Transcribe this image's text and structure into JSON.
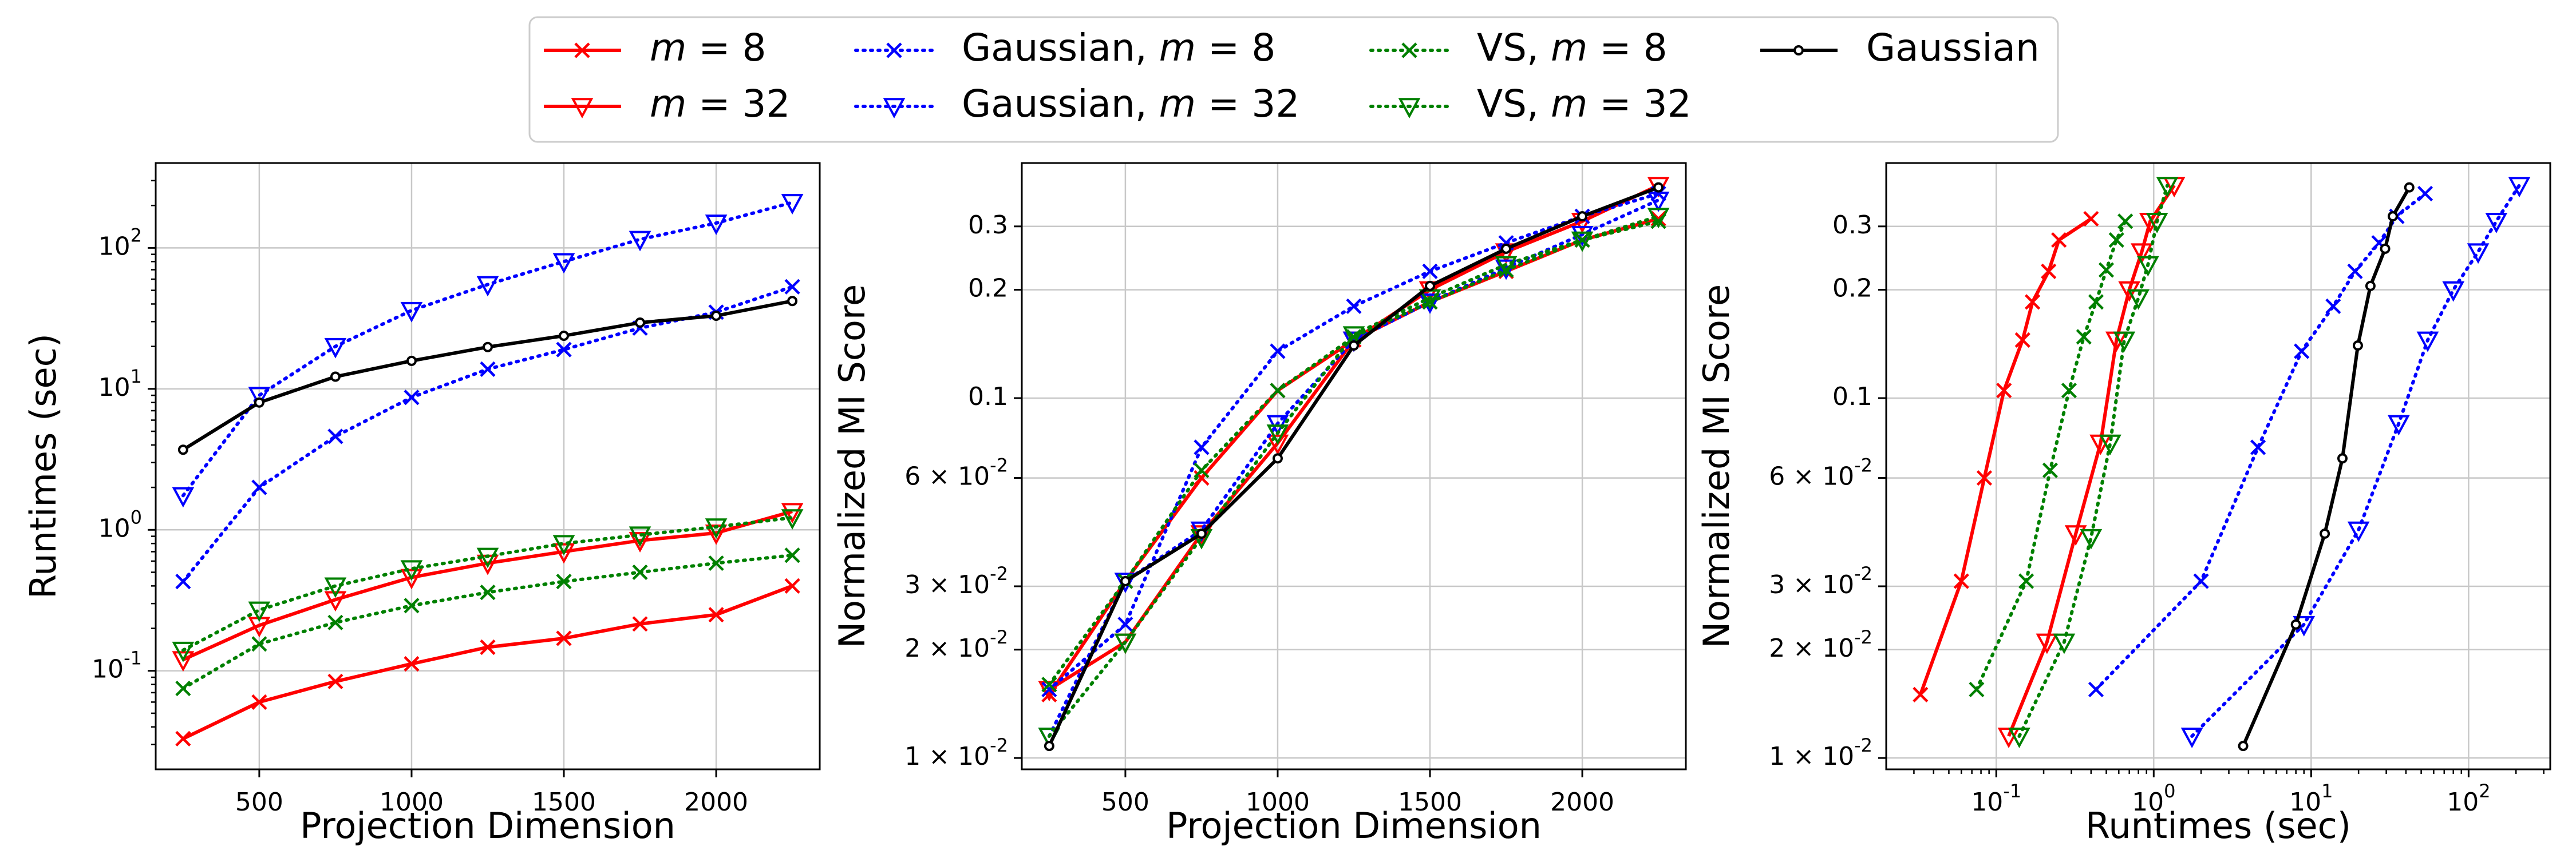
{
  "legend": {
    "entries": [
      {
        "label": "m = 8",
        "series_ref": "m8"
      },
      {
        "label": "m = 32",
        "series_ref": "m32"
      },
      {
        "label": "Gaussian, m = 8",
        "series_ref": "g8"
      },
      {
        "label": "Gaussian, m = 32",
        "series_ref": "g32"
      },
      {
        "label": "VS, m = 8",
        "series_ref": "vs8"
      },
      {
        "label": "VS, m = 32",
        "series_ref": "vs32"
      },
      {
        "label": "Gaussian",
        "series_ref": "gauss"
      }
    ]
  },
  "series_styles": {
    "m8": {
      "color": "#ff0000",
      "dash": "solid",
      "marker": "x"
    },
    "m32": {
      "color": "#ff0000",
      "dash": "solid",
      "marker": "triangle-down"
    },
    "g8": {
      "color": "#0000ff",
      "dash": "dotted",
      "marker": "x"
    },
    "g32": {
      "color": "#0000ff",
      "dash": "dotted",
      "marker": "triangle-down"
    },
    "vs8": {
      "color": "#008000",
      "dash": "dotted",
      "marker": "x"
    },
    "vs32": {
      "color": "#008000",
      "dash": "dotted",
      "marker": "triangle-down"
    },
    "gauss": {
      "color": "#000000",
      "dash": "solid",
      "marker": "circle"
    }
  },
  "chart_data": [
    {
      "type": "line",
      "xlabel": "Projection Dimension",
      "ylabel": "Runtimes (sec)",
      "xscale": "linear",
      "yscale": "log",
      "xlim": [
        160,
        2340
      ],
      "ylim": [
        0.02,
        400
      ],
      "xticks": [
        500,
        1000,
        1500,
        2000
      ],
      "xtick_labels": [
        "500",
        "1000",
        "1500",
        "2000"
      ],
      "yticks": [
        0.1,
        1,
        10,
        100
      ],
      "ytick_labels": [
        "10^-1",
        "10^0",
        "10^1",
        "10^2"
      ],
      "grid": true,
      "x": [
        250,
        500,
        750,
        1000,
        1250,
        1500,
        1750,
        2000,
        2250
      ],
      "series": [
        {
          "key": "m8",
          "values": [
            0.033,
            0.06,
            0.084,
            0.112,
            0.147,
            0.17,
            0.215,
            0.25,
            0.4
          ]
        },
        {
          "key": "m32",
          "values": [
            0.12,
            0.21,
            0.32,
            0.46,
            0.58,
            0.7,
            0.84,
            0.95,
            1.35
          ]
        },
        {
          "key": "g8",
          "values": [
            0.43,
            2.0,
            4.6,
            8.7,
            13.8,
            19.0,
            27.0,
            35.0,
            53.0
          ]
        },
        {
          "key": "g32",
          "values": [
            1.75,
            9.0,
            20.0,
            36.0,
            55.0,
            80.0,
            115.0,
            150.0,
            210.0
          ]
        },
        {
          "key": "vs8",
          "values": [
            0.075,
            0.155,
            0.22,
            0.29,
            0.36,
            0.43,
            0.5,
            0.58,
            0.66
          ]
        },
        {
          "key": "vs32",
          "values": [
            0.14,
            0.27,
            0.4,
            0.53,
            0.65,
            0.8,
            0.92,
            1.05,
            1.22
          ]
        },
        {
          "key": "gauss",
          "values": [
            3.7,
            8.0,
            12.2,
            15.8,
            19.8,
            23.8,
            29.5,
            33.0,
            42.0
          ]
        }
      ]
    },
    {
      "type": "line",
      "xlabel": "Projection Dimension",
      "ylabel": "Normalized MI Score",
      "xscale": "linear",
      "yscale": "log",
      "xlim": [
        160,
        2340
      ],
      "ylim": [
        0.0093,
        0.45
      ],
      "xticks": [
        500,
        1000,
        1500,
        2000
      ],
      "xtick_labels": [
        "500",
        "1000",
        "1500",
        "2000"
      ],
      "yticks": [
        0.01,
        0.02,
        0.03,
        0.06,
        0.1,
        0.2,
        0.3
      ],
      "ytick_labels": [
        "1 × 10^-2",
        "2 × 10^-2",
        "3 × 10^-2",
        "6 × 10^-2",
        "0.1",
        "0.2",
        "0.3"
      ],
      "grid": true,
      "x": [
        250,
        500,
        750,
        1000,
        1250,
        1500,
        1750,
        2000,
        2250
      ],
      "series": [
        {
          "key": "m8",
          "values": [
            0.015,
            0.031,
            0.06,
            0.105,
            0.145,
            0.185,
            0.225,
            0.275,
            0.315
          ]
        },
        {
          "key": "m32",
          "values": [
            0.0155,
            0.021,
            0.042,
            0.075,
            0.145,
            0.2,
            0.255,
            0.31,
            0.39
          ]
        },
        {
          "key": "g8",
          "values": [
            0.0155,
            0.0235,
            0.073,
            0.135,
            0.18,
            0.225,
            0.27,
            0.32,
            0.37
          ]
        },
        {
          "key": "g32",
          "values": [
            0.0115,
            0.031,
            0.043,
            0.085,
            0.145,
            0.185,
            0.23,
            0.285,
            0.355
          ]
        },
        {
          "key": "vs8",
          "values": [
            0.016,
            0.031,
            0.063,
            0.105,
            0.148,
            0.185,
            0.227,
            0.275,
            0.31
          ]
        },
        {
          "key": "vs32",
          "values": [
            0.0115,
            0.021,
            0.041,
            0.08,
            0.15,
            0.19,
            0.235,
            0.275,
            0.32
          ]
        },
        {
          "key": "gauss",
          "values": [
            0.0108,
            0.031,
            0.042,
            0.068,
            0.14,
            0.205,
            0.26,
            0.32,
            0.385
          ]
        }
      ]
    },
    {
      "type": "line",
      "xlabel": "Runtimes (sec)",
      "ylabel": "Normalized MI Score",
      "xscale": "log",
      "yscale": "log",
      "xlim": [
        0.02,
        330
      ],
      "ylim": [
        0.0093,
        0.45
      ],
      "xticks": [
        0.1,
        1,
        10,
        100
      ],
      "xtick_labels": [
        "10^-1",
        "10^0",
        "10^1",
        "10^2"
      ],
      "yticks": [
        0.01,
        0.02,
        0.03,
        0.06,
        0.1,
        0.2,
        0.3
      ],
      "ytick_labels": [
        "1 × 10^-2",
        "2 × 10^-2",
        "3 × 10^-2",
        "6 × 10^-2",
        "0.1",
        "0.2",
        "0.3"
      ],
      "grid": true,
      "series": [
        {
          "key": "m8",
          "x": [
            0.033,
            0.06,
            0.084,
            0.112,
            0.147,
            0.17,
            0.215,
            0.25,
            0.4
          ],
          "values": [
            0.015,
            0.031,
            0.06,
            0.105,
            0.145,
            0.185,
            0.225,
            0.275,
            0.315
          ]
        },
        {
          "key": "m32",
          "x": [
            0.12,
            0.21,
            0.32,
            0.46,
            0.58,
            0.7,
            0.84,
            0.95,
            1.35
          ],
          "values": [
            0.0115,
            0.021,
            0.042,
            0.075,
            0.145,
            0.2,
            0.255,
            0.31,
            0.39
          ]
        },
        {
          "key": "g8",
          "x": [
            0.43,
            2.0,
            4.6,
            8.7,
            13.8,
            19.0,
            27.0,
            35.0,
            53.0
          ],
          "values": [
            0.0155,
            0.031,
            0.073,
            0.135,
            0.18,
            0.225,
            0.27,
            0.32,
            0.37
          ]
        },
        {
          "key": "g32",
          "x": [
            1.75,
            9.0,
            20.0,
            36.0,
            55.0,
            80.0,
            115.0,
            150.0,
            210.0
          ],
          "values": [
            0.0115,
            0.0235,
            0.043,
            0.085,
            0.145,
            0.2,
            0.255,
            0.31,
            0.39
          ]
        },
        {
          "key": "vs8",
          "x": [
            0.075,
            0.155,
            0.22,
            0.29,
            0.36,
            0.43,
            0.5,
            0.58,
            0.66
          ],
          "values": [
            0.0155,
            0.031,
            0.063,
            0.105,
            0.148,
            0.185,
            0.227,
            0.275,
            0.31
          ]
        },
        {
          "key": "vs32",
          "x": [
            0.14,
            0.27,
            0.4,
            0.53,
            0.65,
            0.8,
            0.92,
            1.05,
            1.22
          ],
          "values": [
            0.0115,
            0.021,
            0.041,
            0.075,
            0.145,
            0.19,
            0.235,
            0.31,
            0.39
          ]
        },
        {
          "key": "gauss",
          "x": [
            3.7,
            8.0,
            12.2,
            15.8,
            19.8,
            23.8,
            29.5,
            33.0,
            42.0
          ],
          "values": [
            0.0108,
            0.0235,
            0.042,
            0.068,
            0.14,
            0.205,
            0.26,
            0.32,
            0.385
          ]
        }
      ]
    }
  ]
}
